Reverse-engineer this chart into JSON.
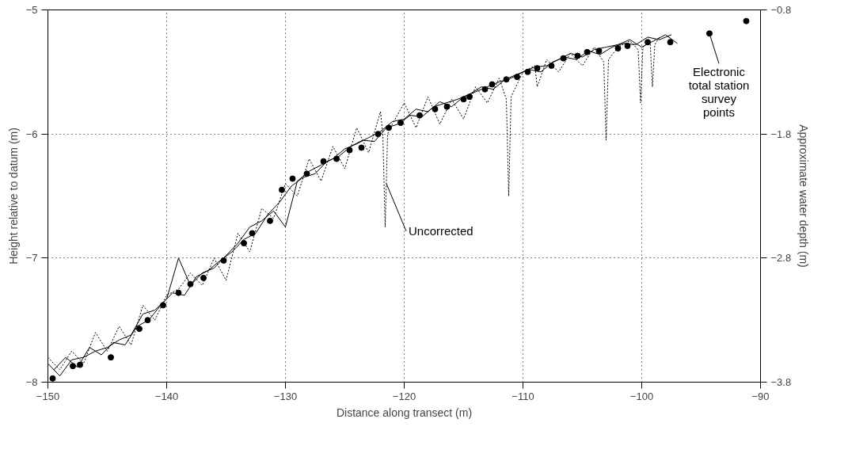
{
  "chart_data": {
    "type": "line",
    "xlabel": "Distance along transect (m)",
    "ylabel": "Height relative to datum (m)",
    "y2label": "Approximate water depth (m)",
    "xlim": [
      -150,
      -90
    ],
    "xticks": [
      -150,
      -140,
      -130,
      -120,
      -110,
      -100,
      -90
    ],
    "ylim": [
      -8,
      -5
    ],
    "yticks": [
      -8,
      -7,
      -6,
      -5
    ],
    "y2lim": [
      -3.8,
      -0.8
    ],
    "y2ticks": [
      -3.8,
      -2.8,
      -1.8,
      -0.8
    ],
    "grid": true,
    "series": [
      {
        "line_style": "solid",
        "color": "#000000",
        "x": [
          -150,
          -149,
          -148,
          -147,
          -146,
          -145,
          -144,
          -143,
          -142,
          -141,
          -140,
          -139,
          -138,
          -137,
          -136,
          -135,
          -134,
          -133,
          -132,
          -131,
          -130,
          -129,
          -128,
          -127,
          -126,
          -125,
          -124,
          -123,
          -122,
          -121,
          -120,
          -119,
          -118,
          -117,
          -116,
          -115,
          -114,
          -113,
          -112,
          -111,
          -110,
          -109,
          -108,
          -107,
          -106,
          -105,
          -104,
          -103,
          -102,
          -101,
          -100,
          -99,
          -98,
          -97
        ],
        "values": [
          -7.85,
          -7.95,
          -7.82,
          -7.8,
          -7.75,
          -7.72,
          -7.66,
          -7.62,
          -7.45,
          -7.42,
          -7.33,
          -7.0,
          -7.22,
          -7.12,
          -7.08,
          -6.98,
          -6.88,
          -6.75,
          -6.7,
          -6.62,
          -6.75,
          -6.38,
          -6.3,
          -6.25,
          -6.2,
          -6.12,
          -6.08,
          -6.03,
          -5.98,
          -5.9,
          -5.88,
          -5.8,
          -5.82,
          -5.74,
          -5.78,
          -5.7,
          -5.66,
          -5.62,
          -5.58,
          -5.55,
          -5.5,
          -5.46,
          -5.45,
          -5.4,
          -5.35,
          -5.38,
          -5.32,
          -5.3,
          -5.28,
          -5.24,
          -5.3,
          -5.25,
          -5.2,
          -5.27
        ]
      },
      {
        "line_style": "solid",
        "color": "#000000",
        "x": [
          -149.5,
          -148.5,
          -147.5,
          -146.5,
          -145.5,
          -144.5,
          -143.5,
          -142.5,
          -141.5,
          -140.5,
          -139.5,
          -138.5,
          -137.5,
          -136.5,
          -135.5,
          -134.5,
          -133.5,
          -132.5,
          -131.5,
          -130.5,
          -129.5,
          -128.5,
          -127.5,
          -126.5,
          -125.5,
          -124.5,
          -123.5,
          -122.5,
          -121.5,
          -120.5,
          -119.5,
          -118.5,
          -117.5,
          -116.5,
          -115.5,
          -114.5,
          -113.5,
          -112.5,
          -111.5,
          -110.5,
          -109.5,
          -108.5,
          -107.5,
          -106.5,
          -105.5,
          -104.5,
          -103.5,
          -102.5,
          -101.5,
          -100.5,
          -99.5,
          -98.5,
          -97.5
        ],
        "values": [
          -7.9,
          -7.8,
          -7.88,
          -7.72,
          -7.78,
          -7.68,
          -7.7,
          -7.55,
          -7.5,
          -7.38,
          -7.28,
          -7.3,
          -7.15,
          -7.1,
          -7.02,
          -6.95,
          -6.85,
          -6.8,
          -6.65,
          -6.55,
          -6.42,
          -6.35,
          -6.32,
          -6.22,
          -6.18,
          -6.1,
          -6.05,
          -6.06,
          -5.95,
          -5.92,
          -5.85,
          -5.86,
          -5.78,
          -5.75,
          -5.72,
          -5.68,
          -5.62,
          -5.64,
          -5.56,
          -5.52,
          -5.48,
          -5.5,
          -5.42,
          -5.38,
          -5.4,
          -5.33,
          -5.36,
          -5.3,
          -5.27,
          -5.28,
          -5.22,
          -5.24,
          -5.2
        ]
      },
      {
        "line_style": "dotted",
        "color": "#000000",
        "x": [
          -150,
          -149,
          -148,
          -147,
          -146,
          -145,
          -144,
          -143,
          -142,
          -141,
          -140,
          -139,
          -138,
          -137,
          -136,
          -135,
          -134,
          -133,
          -132,
          -131,
          -130,
          -129,
          -128,
          -127,
          -126,
          -125,
          -124,
          -123,
          -122,
          -121.8,
          -121.6,
          -121.4,
          -121,
          -120,
          -119,
          -118,
          -117,
          -116,
          -115,
          -114,
          -113,
          -112,
          -111.4,
          -111.2,
          -111,
          -110,
          -109,
          -108.8,
          -108,
          -107,
          -106,
          -105,
          -104,
          -103.2,
          -103,
          -102.8,
          -102,
          -101,
          -100.3,
          -100.1,
          -99.9,
          -99.3,
          -99.1,
          -98.9,
          -98.5
        ],
        "values": [
          -7.8,
          -7.9,
          -7.75,
          -7.85,
          -7.6,
          -7.75,
          -7.55,
          -7.7,
          -7.38,
          -7.5,
          -7.3,
          -7.25,
          -7.12,
          -7.22,
          -7.0,
          -7.18,
          -6.8,
          -6.95,
          -6.6,
          -6.68,
          -6.4,
          -6.5,
          -6.2,
          -6.38,
          -6.1,
          -6.28,
          -5.95,
          -6.15,
          -5.82,
          -6.0,
          -6.75,
          -6.0,
          -5.92,
          -5.75,
          -5.95,
          -5.7,
          -5.92,
          -5.72,
          -5.88,
          -5.62,
          -5.75,
          -5.55,
          -5.72,
          -6.5,
          -5.7,
          -5.5,
          -5.45,
          -5.62,
          -5.4,
          -5.5,
          -5.35,
          -5.45,
          -5.3,
          -5.42,
          -6.05,
          -5.4,
          -5.3,
          -5.25,
          -5.32,
          -5.75,
          -5.3,
          -5.25,
          -5.62,
          -5.28,
          -5.22
        ]
      },
      {
        "type": "scatter",
        "marker": "circle",
        "color": "#000000",
        "x": [
          -149.6,
          -147.9,
          -147.3,
          -144.7,
          -142.3,
          -141.6,
          -140.3,
          -139.0,
          -138.0,
          -136.9,
          -135.2,
          -133.5,
          -132.8,
          -131.3,
          -130.3,
          -129.4,
          -128.2,
          -126.8,
          -125.7,
          -124.6,
          -123.6,
          -122.2,
          -121.3,
          -120.3,
          -118.7,
          -117.4,
          -116.4,
          -115.0,
          -114.5,
          -113.2,
          -112.6,
          -111.4,
          -110.5,
          -109.6,
          -108.8,
          -107.6,
          -106.6,
          -105.4,
          -104.6,
          -103.6,
          -102.0,
          -101.2,
          -99.5,
          -97.6,
          -94.3,
          -91.2
        ],
        "values": [
          -7.97,
          -7.87,
          -7.86,
          -7.8,
          -7.57,
          -7.5,
          -7.38,
          -7.28,
          -7.21,
          -7.16,
          -7.02,
          -6.88,
          -6.8,
          -6.7,
          -6.45,
          -6.36,
          -6.32,
          -6.22,
          -6.2,
          -6.13,
          -6.11,
          -6.0,
          -5.95,
          -5.91,
          -5.85,
          -5.8,
          -5.78,
          -5.72,
          -5.7,
          -5.64,
          -5.6,
          -5.56,
          -5.54,
          -5.5,
          -5.47,
          -5.45,
          -5.39,
          -5.37,
          -5.34,
          -5.33,
          -5.31,
          -5.29,
          -5.26,
          -5.26,
          -5.19,
          -5.09
        ]
      }
    ],
    "annotations": [
      {
        "text": "Uncorrected",
        "x": -121.5,
        "y": -6.4
      },
      {
        "text": "Electronic\ntotal station\nsurvey\npoints",
        "x": -94.3,
        "y": -5.19
      }
    ]
  }
}
